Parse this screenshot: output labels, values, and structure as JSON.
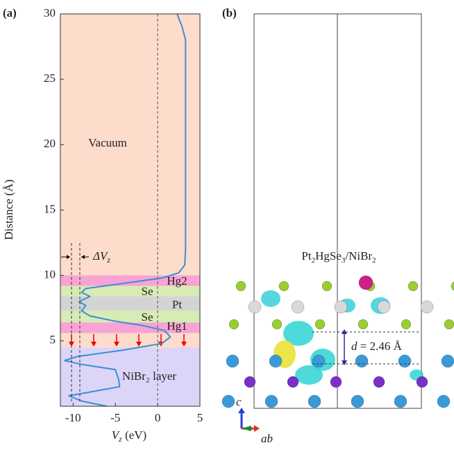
{
  "chart_data": {
    "type": "line",
    "panel_label": "(a)",
    "xlabel": [
      "V",
      "z",
      " (eV)"
    ],
    "ylabel": "Distance (Å)",
    "xlim": [
      -11.5,
      5
    ],
    "xticks": [
      -10,
      -5,
      0,
      5
    ],
    "ylim": [
      0,
      30
    ],
    "yticks": [
      5,
      10,
      15,
      20,
      25,
      30
    ],
    "regions": [
      {
        "label": "Vacuum",
        "range": [
          4.5,
          30
        ],
        "color": "#fddccb"
      },
      {
        "label": "Hg2",
        "range": [
          9.2,
          10
        ],
        "color": "#f7a3d4"
      },
      {
        "label": "Se",
        "range": [
          8.4,
          9.2
        ],
        "color": "#d6ecb4"
      },
      {
        "label": "Pt",
        "range": [
          7.3,
          8.4
        ],
        "color": "#d4d4d4"
      },
      {
        "label": "Se",
        "range": [
          6.4,
          7.3
        ],
        "color": "#d6ecb4"
      },
      {
        "label": "Hg1",
        "range": [
          5.6,
          6.4
        ],
        "color": "#f7a3d4"
      },
      {
        "label": "NiBr₂ layer",
        "range": [
          0,
          4.5
        ],
        "color": "#dcd5f7"
      }
    ],
    "annotation": [
      "ΔV",
      "z"
    ],
    "series": [
      {
        "color": "#3b8fd1",
        "x": [
          2.3,
          2.9,
          3.3,
          3.3,
          3.3,
          3.2,
          2.5,
          0.5,
          -4,
          -8.5,
          -9,
          -8,
          -9.3,
          -8.5,
          -9,
          -8,
          -5,
          -2,
          0.8,
          1.5,
          0.5,
          -4,
          -9.5,
          -11,
          -9,
          -5,
          -4.6,
          -4.5,
          -7,
          -10.5,
          -9,
          -6
        ],
        "values": [
          30,
          29,
          28,
          20,
          12,
          10.8,
          10.2,
          9.8,
          9.4,
          9.0,
          8.7,
          8.4,
          8.0,
          7.7,
          7.3,
          6.9,
          6.5,
          6.2,
          5.8,
          5.3,
          4.8,
          4.3,
          3.8,
          3.5,
          3.2,
          2.8,
          2.0,
          1.5,
          1.2,
          0.8,
          0.4,
          0
        ]
      }
    ]
  },
  "panel_b": {
    "panel_label": "(b)",
    "formula": [
      "Pt",
      "2",
      "HgSe",
      "3",
      "/NiBr",
      "2"
    ],
    "distance": [
      "d",
      " = 2.46 Å"
    ],
    "axis_c": "c",
    "axis_ab": "ab"
  }
}
